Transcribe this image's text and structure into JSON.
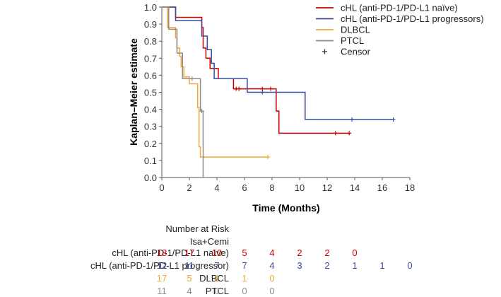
{
  "chart_data": {
    "type": "line",
    "subtype": "kaplan-meier",
    "title": "",
    "xlabel": "Time (Months)",
    "ylabel": "Kaplan–Meier estimate",
    "xlim": [
      0,
      18
    ],
    "ylim": [
      0,
      1
    ],
    "xticks": [
      "0",
      "2",
      "4",
      "6",
      "8",
      "10",
      "12",
      "14",
      "16",
      "18"
    ],
    "yticks": [
      "0.0",
      "0.1",
      "0.2",
      "0.3",
      "0.4",
      "0.5",
      "0.6",
      "0.7",
      "0.8",
      "0.9",
      "1.0"
    ],
    "grid": false,
    "legend_position": "top-right",
    "censor_label": "Censor",
    "series": [
      {
        "name": "cHL (anti-PD-1/PD-L1 naïve)",
        "color": "#cc0000",
        "steps": [
          [
            0,
            1.0
          ],
          [
            1.0,
            0.94
          ],
          [
            2.9,
            0.88
          ],
          [
            3.0,
            0.76
          ],
          [
            3.2,
            0.7
          ],
          [
            3.5,
            0.64
          ],
          [
            4.1,
            0.58
          ],
          [
            5.2,
            0.52
          ],
          [
            8.3,
            0.39
          ],
          [
            8.5,
            0.26
          ]
        ],
        "end": 13.6,
        "censors": [
          [
            5.4,
            0.52
          ],
          [
            5.6,
            0.52
          ],
          [
            7.3,
            0.52
          ],
          [
            7.9,
            0.52
          ],
          [
            12.6,
            0.26
          ],
          [
            13.6,
            0.26
          ]
        ]
      },
      {
        "name": "cHL (anti-PD-1/PD-L1 progressors)",
        "color": "#3b4a9e",
        "steps": [
          [
            0,
            1.0
          ],
          [
            1.0,
            0.92
          ],
          [
            2.9,
            0.83
          ],
          [
            3.3,
            0.75
          ],
          [
            3.6,
            0.67
          ],
          [
            3.8,
            0.58
          ],
          [
            6.2,
            0.5
          ],
          [
            10.4,
            0.34
          ]
        ],
        "end": 16.8,
        "censors": [
          [
            7.3,
            0.5
          ],
          [
            13.8,
            0.34
          ],
          [
            16.8,
            0.34
          ]
        ]
      },
      {
        "name": "DLBCL",
        "color": "#f0a830",
        "steps": [
          [
            0,
            1.0
          ],
          [
            0.4,
            0.88
          ],
          [
            1.0,
            0.82
          ],
          [
            1.1,
            0.76
          ],
          [
            1.3,
            0.71
          ],
          [
            1.4,
            0.65
          ],
          [
            1.6,
            0.59
          ],
          [
            2.0,
            0.55
          ],
          [
            2.6,
            0.41
          ],
          [
            2.7,
            0.18
          ],
          [
            2.8,
            0.12
          ]
        ],
        "end": 7.7,
        "censors": [
          [
            7.7,
            0.12
          ]
        ]
      },
      {
        "name": "PTCL",
        "color": "#8c8c8c",
        "steps": [
          [
            0,
            1.0
          ],
          [
            0.5,
            0.87
          ],
          [
            1.1,
            0.73
          ],
          [
            1.5,
            0.58
          ],
          [
            2.8,
            0.39
          ],
          [
            3.0,
            0.0
          ]
        ],
        "end": 3.0,
        "censors": [
          [
            2.2,
            0.58
          ],
          [
            2.9,
            0.39
          ]
        ]
      }
    ]
  },
  "risk_table": {
    "header": "Number at Risk",
    "subheader": "Isa+Cemi",
    "rows": [
      {
        "label": "cHL (anti-PD-1/PD-L1 naïve)",
        "color": "#cc0000",
        "values": [
          "18",
          "17",
          "10",
          "5",
          "4",
          "2",
          "2",
          "0"
        ]
      },
      {
        "label": "cHL (anti-PD-1/PD-L1 progressor)",
        "color": "#3b4a9e",
        "values": [
          "12",
          "11",
          "7",
          "7",
          "4",
          "3",
          "2",
          "1",
          "1",
          "0"
        ]
      },
      {
        "label": "DLBCL",
        "color": "#f0a830",
        "values": [
          "17",
          "5",
          "1",
          "1",
          "0"
        ]
      },
      {
        "label": "PTCL",
        "color": "#8c8c8c",
        "values": [
          "11",
          "4",
          "0",
          "0",
          "0"
        ]
      }
    ]
  }
}
